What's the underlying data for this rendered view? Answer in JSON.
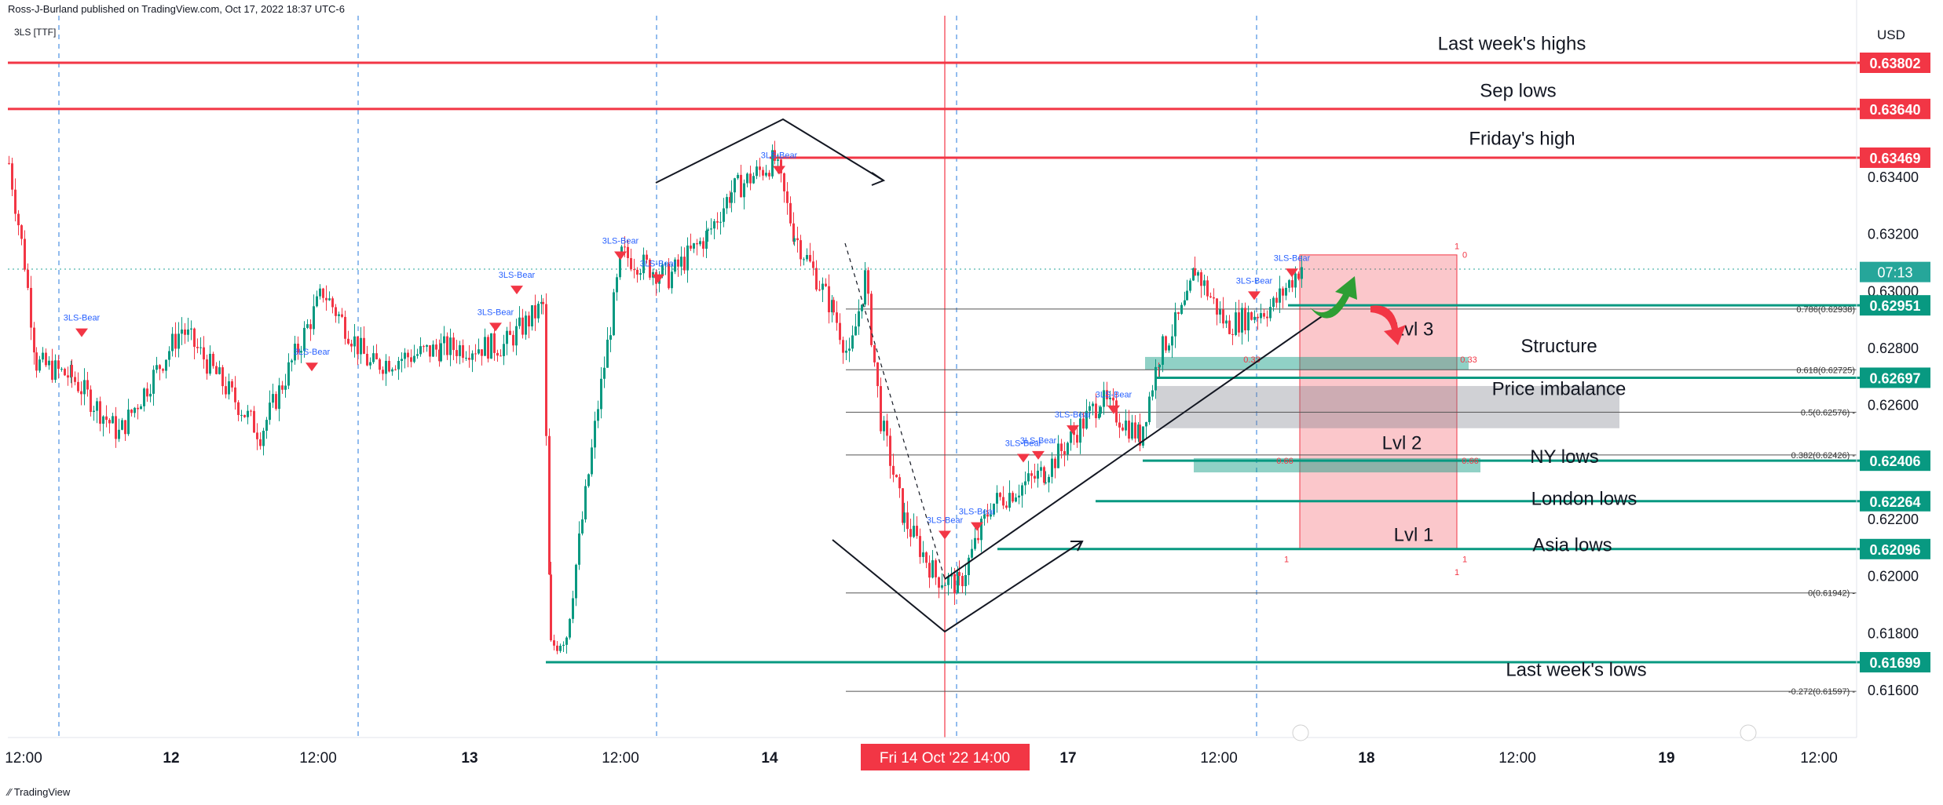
{
  "header": {
    "published": "Ross-J-Burland published on TradingView.com, Oct 17, 2022 18:37 UTC-6",
    "symbol": "3LS [TTF]"
  },
  "footer": {
    "brand": "TradingView"
  },
  "chart_data": {
    "type": "candlestick",
    "currency": "USD",
    "ylim": [
      0.6145,
      0.6393
    ],
    "yticks": [
      "0.63400",
      "0.63200",
      "0.63000",
      "0.62800",
      "0.62600",
      "0.62200",
      "0.62000",
      "0.61800",
      "0.61600"
    ],
    "xticks": [
      "12:00",
      "12",
      "12:00",
      "13",
      "12:00",
      "14",
      "17",
      "12:00",
      "18",
      "12:00",
      "19",
      "12:00"
    ],
    "cursor_label": "Fri 14 Oct '22   14:00",
    "countdown": "07:13",
    "current_price_line": 0.63078,
    "price_levels": [
      {
        "price": "0.63802",
        "label": "Last week's highs",
        "color": "#f23645"
      },
      {
        "price": "0.63640",
        "label": "Sep lows",
        "color": "#f23645"
      },
      {
        "price": "0.63469",
        "label": "Friday's high",
        "color": "#f23645"
      },
      {
        "price": "0.62951",
        "label": "",
        "color": "#089981"
      },
      {
        "price": "0.62697",
        "label": "Structure",
        "color": "#089981"
      },
      {
        "price": "0.62406",
        "label": "NY lows",
        "color": "#089981"
      },
      {
        "price": "0.62264",
        "label": "London lows",
        "color": "#089981"
      },
      {
        "price": "0.62096",
        "label": "Asia lows",
        "color": "#089981"
      },
      {
        "price": "0.61699",
        "label": "Last week's lows",
        "color": "#089981"
      }
    ],
    "fibonacci": [
      {
        "ratio": "0.786",
        "price": 0.62938,
        "label": "0.786(0.62938)"
      },
      {
        "ratio": "0.618",
        "price": 0.62725,
        "label": "0.618(0.62725)"
      },
      {
        "ratio": "0.5",
        "price": 0.62576,
        "label": "0.5(0.62576) -"
      },
      {
        "ratio": "0.382",
        "price": 0.62426,
        "label": "0.382(0.62426) -"
      },
      {
        "ratio": "0",
        "price": 0.61942,
        "label": "0(0.61942) -"
      },
      {
        "ratio": "-0.272",
        "price": 0.61597,
        "label": "-0.272(0.61597) -"
      }
    ],
    "zone_labels": [
      "Lvl 3",
      "Lvl 2",
      "Lvl 1",
      "Price imbalance"
    ],
    "zone_marks": [
      "0",
      "1",
      "0.33",
      "0.66"
    ],
    "signal_label": "3LS-Bear"
  }
}
